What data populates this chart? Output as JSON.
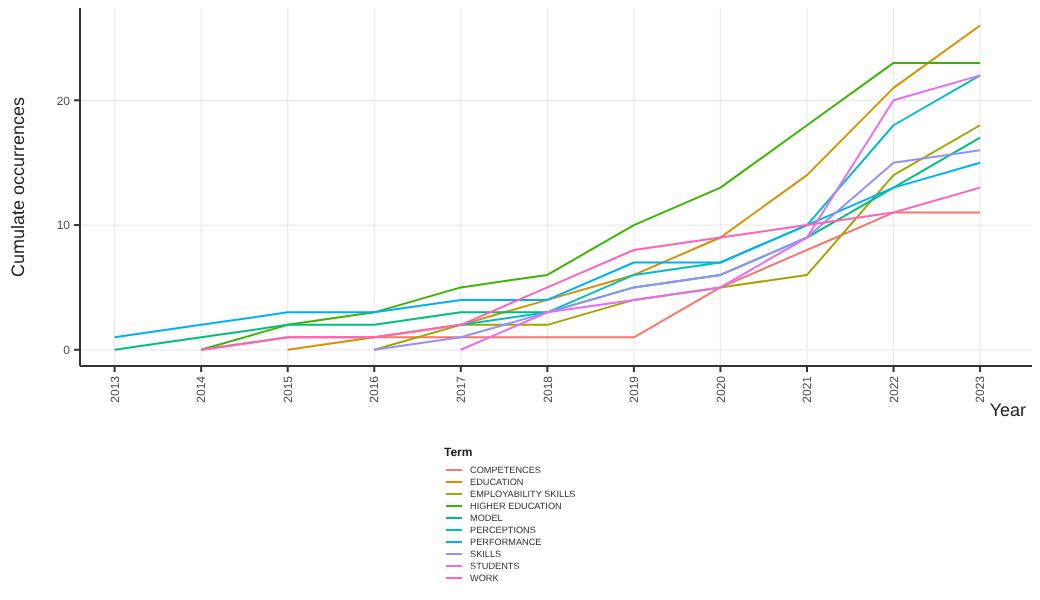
{
  "chart_data": {
    "type": "line",
    "xlabel": "Year",
    "ylabel": "Cumulate occurrences",
    "legend_title": "Term",
    "legend": "bottom",
    "grid": true,
    "xlim": [
      2012.6,
      2023.6
    ],
    "xticks": [
      2013,
      2014,
      2015,
      2016,
      2017,
      2018,
      2019,
      2020,
      2021,
      2022,
      2023
    ],
    "ylim": [
      -1.3,
      27.4
    ],
    "yticks": [
      0,
      10,
      20
    ],
    "x": [
      2013,
      2014,
      2015,
      2016,
      2017,
      2018,
      2019,
      2020,
      2021,
      2022,
      2023
    ],
    "series": [
      {
        "name": "COMPETENCES",
        "color": "#f8766d",
        "values": [
          null,
          0,
          1,
          1,
          1,
          1,
          1,
          5,
          8,
          11,
          11
        ]
      },
      {
        "name": "EDUCATION",
        "color": "#d89000",
        "values": [
          null,
          null,
          0,
          1,
          2,
          4,
          6,
          9,
          14,
          21,
          26
        ]
      },
      {
        "name": "EMPLOYABILITY SKILLS",
        "color": "#a3a500",
        "values": [
          null,
          null,
          null,
          0,
          2,
          2,
          4,
          5,
          6,
          14,
          18
        ]
      },
      {
        "name": "HIGHER EDUCATION",
        "color": "#39b600",
        "values": [
          null,
          0,
          2,
          3,
          5,
          6,
          10,
          13,
          18,
          23,
          23
        ]
      },
      {
        "name": "MODEL",
        "color": "#00bf7d",
        "values": [
          0,
          1,
          2,
          2,
          3,
          3,
          5,
          6,
          9,
          13,
          17
        ]
      },
      {
        "name": "PERCEPTIONS",
        "color": "#00bfc4",
        "values": [
          null,
          null,
          null,
          null,
          2,
          3,
          6,
          7,
          10,
          18,
          22
        ]
      },
      {
        "name": "PERFORMANCE",
        "color": "#00b0f6",
        "values": [
          1,
          2,
          3,
          3,
          4,
          4,
          7,
          7,
          10,
          13,
          15
        ]
      },
      {
        "name": "SKILLS",
        "color": "#9590ff",
        "values": [
          null,
          null,
          null,
          0,
          1,
          3,
          5,
          6,
          9,
          15,
          16
        ]
      },
      {
        "name": "STUDENTS",
        "color": "#e76bf3",
        "values": [
          null,
          null,
          null,
          null,
          0,
          3,
          4,
          5,
          9,
          20,
          22
        ]
      },
      {
        "name": "WORK",
        "color": "#ff62bc",
        "values": [
          null,
          0,
          1,
          1,
          2,
          5,
          8,
          9,
          10,
          11,
          13
        ]
      }
    ]
  }
}
